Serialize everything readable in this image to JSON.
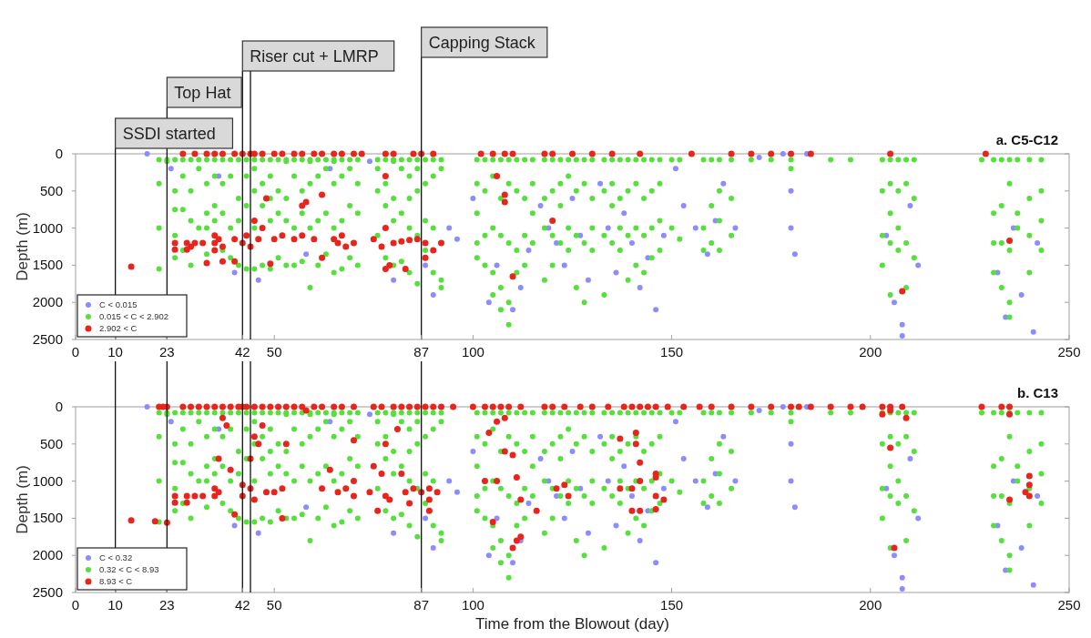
{
  "chart_data": [
    {
      "type": "scatter",
      "title": "a. C5-C12",
      "ylabel": "Depth (m)",
      "xlim": [
        0,
        250
      ],
      "ylim": [
        2500,
        0
      ],
      "xticks": [
        0,
        10,
        23,
        42,
        50,
        87,
        100,
        150,
        200,
        250
      ],
      "yticks": [
        0,
        500,
        1000,
        1500,
        2000,
        2500
      ],
      "legend": "bottom left",
      "marker": "circle",
      "ref_lines": [
        {
          "axis": "x",
          "value": 10,
          "label": "SSDI started"
        },
        {
          "axis": "x",
          "value": 23,
          "label": "Top Hat"
        },
        {
          "axis": "x",
          "value": 42,
          "label": "Riser cut + LMRP"
        },
        {
          "axis": "x",
          "value": 44
        },
        {
          "axis": "x",
          "value": 87,
          "label": "Capping Stack"
        }
      ],
      "series": [
        {
          "name": "C < 0.015",
          "color": "#8c8cff",
          "x": [
            18,
            24,
            36,
            40,
            46,
            58,
            64,
            74,
            80,
            88,
            90,
            94,
            96,
            100,
            104,
            106,
            110,
            112,
            114,
            117,
            119,
            121,
            123,
            125,
            127,
            129,
            132,
            134,
            136,
            138,
            140,
            142,
            144,
            146,
            148,
            151,
            153,
            156,
            159,
            161,
            163,
            166,
            172,
            178,
            180,
            180,
            181,
            184,
            204,
            206,
            208,
            208,
            210,
            212,
            232,
            234,
            236,
            238,
            242,
            241
          ],
          "values": [
            0,
            200,
            300,
            1600,
            1700,
            1350,
            200,
            100,
            1700,
            1500,
            1900,
            1000,
            1150,
            600,
            2000,
            1500,
            2100,
            1800,
            1300,
            700,
            1000,
            1200,
            1500,
            600,
            1100,
            1700,
            400,
            1000,
            1600,
            800,
            1200,
            1800,
            1400,
            2100,
            1100,
            200,
            700,
            1000,
            1350,
            900,
            400,
            1000,
            50,
            0,
            500,
            1000,
            1350,
            0,
            1100,
            2000,
            2300,
            2450,
            700,
            1500,
            1600,
            2200,
            1000,
            1900,
            1200,
            2400
          ]
        },
        {
          "name": "0.015 < C < 2.902",
          "color": "#55e03c",
          "x": [
            21,
            21,
            21,
            21,
            23,
            23,
            25,
            25,
            25,
            25,
            25,
            27,
            27,
            27,
            27,
            29,
            29,
            29,
            29,
            31,
            31,
            31,
            33,
            33,
            33,
            33,
            33,
            35,
            35,
            35,
            35,
            37,
            37,
            37,
            37,
            39,
            39,
            39,
            39,
            41,
            41,
            41,
            41,
            43,
            43,
            43,
            43,
            45,
            45,
            45,
            45,
            45,
            47,
            47,
            47,
            47,
            49,
            49,
            49,
            49,
            49,
            51,
            51,
            51,
            51,
            53,
            53,
            53,
            53,
            53,
            55,
            55,
            55,
            55,
            57,
            57,
            57,
            57,
            59,
            59,
            59,
            59,
            59,
            61,
            61,
            61,
            61,
            63,
            63,
            63,
            63,
            65,
            65,
            65,
            65,
            65,
            67,
            67,
            67,
            67,
            69,
            69,
            69,
            69,
            71,
            71,
            71,
            71,
            76,
            76,
            76,
            76,
            78,
            78,
            78,
            78,
            80,
            80,
            80,
            80,
            80,
            82,
            82,
            82,
            82,
            84,
            84,
            84,
            84,
            84,
            86,
            86,
            86,
            86,
            86,
            88,
            88,
            88,
            88,
            90,
            90,
            90,
            90,
            92,
            92,
            92,
            92,
            101,
            101,
            101,
            101,
            101,
            103,
            103,
            103,
            103,
            105,
            105,
            105,
            105,
            105,
            107,
            107,
            107,
            107,
            107,
            109,
            109,
            109,
            109,
            109,
            111,
            111,
            111,
            111,
            113,
            113,
            113,
            113,
            115,
            115,
            115,
            115,
            118,
            118,
            118,
            118,
            120,
            120,
            120,
            120,
            122,
            122,
            122,
            122,
            124,
            124,
            124,
            124,
            126,
            126,
            126,
            126,
            128,
            128,
            128,
            128,
            130,
            130,
            130,
            130,
            133,
            133,
            133,
            133,
            135,
            135,
            135,
            135,
            137,
            137,
            137,
            137,
            139,
            139,
            139,
            139,
            141,
            141,
            141,
            141,
            143,
            143,
            143,
            143,
            145,
            145,
            145,
            145,
            147,
            147,
            147,
            147,
            150,
            150,
            152,
            152,
            158,
            158,
            158,
            160,
            160,
            160,
            162,
            162,
            162,
            162,
            165,
            165,
            165,
            170,
            175,
            180,
            180,
            190,
            195,
            203,
            203,
            203,
            203,
            205,
            205,
            205,
            205,
            205,
            207,
            207,
            207,
            207,
            209,
            209,
            209,
            209,
            211,
            211,
            211,
            228,
            231,
            231,
            231,
            231,
            233,
            233,
            233,
            233,
            235,
            235,
            235,
            235,
            235,
            237,
            237,
            237,
            240,
            240,
            240,
            240,
            243,
            243,
            243,
            243
          ],
          "values": [
            80,
            400,
            1000,
            1550,
            80,
            100,
            80,
            500,
            750,
            1100,
            1400,
            80,
            300,
            750,
            1300,
            80,
            500,
            900,
            1500,
            80,
            200,
            1000,
            80,
            400,
            800,
            1000,
            1350,
            80,
            300,
            700,
            900,
            80,
            400,
            800,
            1300,
            80,
            300,
            1000,
            1400,
            80,
            600,
            900,
            1500,
            80,
            300,
            700,
            1550,
            80,
            200,
            500,
            1000,
            1550,
            80,
            400,
            700,
            1500,
            80,
            300,
            600,
            900,
            1550,
            80,
            500,
            800,
            1400,
            80,
            100,
            600,
            900,
            1500,
            80,
            300,
            1000,
            1500,
            80,
            500,
            800,
            1450,
            80,
            100,
            400,
            1000,
            1800,
            80,
            300,
            900,
            1500,
            80,
            200,
            800,
            1350,
            80,
            100,
            400,
            1000,
            1600,
            80,
            300,
            900,
            1550,
            80,
            200,
            700,
            1400,
            80,
            400,
            800,
            1500,
            80,
            200,
            500,
            1100,
            80,
            400,
            700,
            1400,
            80,
            100,
            600,
            900,
            1500,
            80,
            200,
            800,
            1450,
            80,
            300,
            600,
            1000,
            1600,
            80,
            200,
            500,
            1100,
            1750,
            80,
            400,
            900,
            1300,
            80,
            300,
            1000,
            1600,
            80,
            200,
            1700,
            1800,
            80,
            400,
            800,
            1200,
            1400,
            80,
            500,
            1100,
            1500,
            80,
            300,
            1000,
            1600,
            1900,
            80,
            600,
            1100,
            1800,
            2100,
            80,
            400,
            1200,
            2000,
            2300,
            80,
            500,
            1300,
            1600,
            80,
            600,
            1100,
            1500,
            80,
            400,
            800,
            1200,
            80,
            600,
            1000,
            1700,
            80,
            500,
            1100,
            1500,
            80,
            400,
            700,
            1200,
            80,
            300,
            1000,
            1300,
            80,
            500,
            1100,
            1800,
            80,
            400,
            1200,
            2000,
            80,
            600,
            1000,
            1300,
            80,
            500,
            1100,
            1900,
            80,
            400,
            700,
            1200,
            80,
            600,
            1000,
            1300,
            80,
            500,
            1100,
            1700,
            80,
            400,
            1000,
            1500,
            80,
            600,
            1100,
            1600,
            80,
            500,
            1000,
            1400,
            80,
            400,
            900,
            1300,
            80,
            1000,
            80,
            1150,
            80,
            1000,
            1300,
            80,
            700,
            1200,
            80,
            500,
            900,
            1300,
            80,
            600,
            1100,
            80,
            80,
            80,
            200,
            80,
            80,
            80,
            500,
            1100,
            1500,
            80,
            400,
            800,
            1200,
            1900,
            80,
            500,
            1000,
            1300,
            80,
            400,
            1200,
            1800,
            80,
            600,
            1400,
            80,
            80,
            800,
            1200,
            1600,
            80,
            700,
            1200,
            1800,
            80,
            400,
            1300,
            2000,
            2200,
            80,
            800,
            1000,
            80,
            600,
            1100,
            1600,
            80,
            500,
            900,
            1300
          ]
        },
        {
          "name": "2.902 < C",
          "color": "#e8251c",
          "x": [
            14,
            27,
            30,
            33,
            35,
            37,
            40,
            42,
            44,
            45,
            47,
            50,
            52,
            55,
            57,
            60,
            62,
            65,
            67,
            70,
            72,
            78,
            80,
            85,
            87,
            90,
            102,
            105,
            108,
            110,
            118,
            120,
            125,
            130,
            135,
            142,
            155,
            165,
            170,
            175,
            180,
            185,
            205,
            229,
            25,
            25,
            28,
            28,
            29,
            30,
            32,
            35,
            35,
            35,
            36,
            37,
            37,
            40,
            42,
            43,
            44,
            46,
            47,
            48,
            50,
            52,
            55,
            57,
            57,
            60,
            62,
            65,
            66,
            67,
            68,
            70,
            75,
            77,
            78,
            80,
            82,
            84,
            86,
            88,
            90,
            92,
            88,
            83,
            78,
            78,
            79,
            110,
            108,
            108,
            106,
            120,
            208,
            235,
            62,
            49,
            33,
            40,
            58,
            45
          ],
          "values": [
            1520,
            0,
            0,
            0,
            0,
            0,
            0,
            0,
            0,
            0,
            0,
            0,
            0,
            0,
            0,
            0,
            0,
            0,
            0,
            0,
            0,
            0,
            0,
            0,
            0,
            0,
            0,
            0,
            0,
            0,
            0,
            0,
            0,
            0,
            0,
            0,
            0,
            0,
            0,
            0,
            0,
            0,
            0,
            0,
            1200,
            1290,
            1200,
            1290,
            1250,
            1200,
            1200,
            1100,
            1200,
            1300,
            1150,
            1250,
            1450,
            1150,
            1200,
            1100,
            1250,
            1150,
            1000,
            600,
            1150,
            1100,
            1150,
            1100,
            700,
            1150,
            550,
            1150,
            1200,
            1100,
            1250,
            1200,
            1150,
            1250,
            1000,
            1200,
            1180,
            1160,
            1150,
            1200,
            1300,
            1200,
            1400,
            1550,
            1550,
            300,
            1500,
            1650,
            550,
            650,
            300,
            900,
            1850,
            1170,
            1400,
            1480,
            1470,
            1450,
            650,
            900
          ]
        }
      ]
    },
    {
      "type": "scatter",
      "title": "b. C13",
      "xlabel": "Time from the Blowout (day)",
      "ylabel": "Depth (m)",
      "xlim": [
        0,
        250
      ],
      "ylim": [
        2500,
        0
      ],
      "xticks": [
        0,
        10,
        23,
        42,
        50,
        87,
        100,
        150,
        200,
        250
      ],
      "yticks": [
        0,
        500,
        1000,
        1500,
        2000,
        2500
      ],
      "legend": "bottom left",
      "marker": "circle",
      "ref_lines": [
        {
          "axis": "x",
          "value": 10
        },
        {
          "axis": "x",
          "value": 23
        },
        {
          "axis": "x",
          "value": 42
        },
        {
          "axis": "x",
          "value": 44
        },
        {
          "axis": "x",
          "value": 87
        }
      ],
      "series": [
        {
          "name": "C < 0.32",
          "color": "#8c8cff",
          "x": [
            18,
            24,
            36,
            40,
            46,
            58,
            64,
            74,
            80,
            88,
            90,
            94,
            96,
            100,
            104,
            106,
            110,
            112,
            114,
            117,
            119,
            121,
            123,
            125,
            127,
            129,
            132,
            134,
            136,
            138,
            140,
            142,
            144,
            146,
            148,
            151,
            153,
            156,
            159,
            161,
            163,
            166,
            172,
            178,
            180,
            180,
            181,
            184,
            204,
            206,
            208,
            208,
            210,
            212,
            232,
            234,
            236,
            238,
            242,
            241
          ],
          "values": [
            0,
            200,
            300,
            1600,
            1700,
            1350,
            200,
            100,
            1700,
            1500,
            1900,
            1000,
            1150,
            600,
            2000,
            1500,
            2100,
            1800,
            1300,
            700,
            1000,
            1200,
            1500,
            600,
            1100,
            1700,
            400,
            1000,
            1600,
            800,
            1200,
            1800,
            1400,
            2100,
            1100,
            200,
            700,
            1000,
            1350,
            900,
            400,
            1000,
            50,
            0,
            500,
            1000,
            1350,
            0,
            1100,
            2000,
            2300,
            2450,
            700,
            1500,
            1600,
            2200,
            1000,
            1900,
            1200,
            2400
          ]
        },
        {
          "name": "0.32 < C < 8.93",
          "color": "#55e03c",
          "x": [
            21,
            21,
            21,
            21,
            23,
            23,
            25,
            25,
            25,
            25,
            25,
            27,
            27,
            27,
            27,
            29,
            29,
            29,
            29,
            31,
            31,
            31,
            33,
            33,
            33,
            33,
            33,
            35,
            35,
            35,
            35,
            37,
            37,
            37,
            37,
            39,
            39,
            39,
            39,
            41,
            41,
            41,
            41,
            43,
            43,
            43,
            43,
            45,
            45,
            45,
            45,
            45,
            47,
            47,
            47,
            47,
            49,
            49,
            49,
            49,
            49,
            51,
            51,
            51,
            51,
            53,
            53,
            53,
            53,
            53,
            55,
            55,
            55,
            55,
            57,
            57,
            57,
            57,
            59,
            59,
            59,
            59,
            59,
            61,
            61,
            61,
            61,
            63,
            63,
            63,
            63,
            65,
            65,
            65,
            65,
            65,
            67,
            67,
            67,
            67,
            69,
            69,
            69,
            69,
            71,
            71,
            71,
            71,
            76,
            76,
            76,
            76,
            78,
            78,
            78,
            78,
            80,
            80,
            80,
            80,
            80,
            82,
            82,
            82,
            82,
            84,
            84,
            84,
            84,
            84,
            86,
            86,
            86,
            86,
            86,
            88,
            88,
            88,
            88,
            90,
            90,
            90,
            90,
            92,
            92,
            92,
            92,
            101,
            101,
            101,
            101,
            101,
            103,
            103,
            103,
            103,
            105,
            105,
            105,
            105,
            105,
            107,
            107,
            107,
            107,
            107,
            109,
            109,
            109,
            109,
            109,
            111,
            111,
            111,
            111,
            113,
            113,
            113,
            113,
            115,
            115,
            115,
            115,
            118,
            118,
            118,
            118,
            120,
            120,
            120,
            120,
            122,
            122,
            122,
            122,
            124,
            124,
            124,
            124,
            126,
            126,
            126,
            126,
            128,
            128,
            128,
            128,
            130,
            130,
            130,
            130,
            133,
            133,
            133,
            133,
            135,
            135,
            135,
            135,
            137,
            137,
            137,
            137,
            139,
            139,
            139,
            139,
            141,
            141,
            141,
            141,
            143,
            143,
            143,
            143,
            145,
            145,
            145,
            145,
            147,
            147,
            147,
            147,
            150,
            150,
            152,
            152,
            158,
            158,
            158,
            160,
            160,
            160,
            162,
            162,
            162,
            162,
            165,
            165,
            165,
            170,
            175,
            180,
            180,
            190,
            195,
            203,
            203,
            203,
            203,
            205,
            205,
            205,
            205,
            205,
            207,
            207,
            207,
            207,
            209,
            209,
            209,
            209,
            211,
            211,
            211,
            228,
            231,
            231,
            231,
            231,
            233,
            233,
            233,
            233,
            235,
            235,
            235,
            235,
            235,
            237,
            237,
            237,
            240,
            240,
            240,
            240,
            243,
            243,
            243,
            243
          ],
          "values": [
            80,
            400,
            1000,
            1550,
            80,
            100,
            80,
            500,
            750,
            1100,
            1400,
            80,
            300,
            750,
            1300,
            80,
            500,
            900,
            1500,
            80,
            200,
            1000,
            80,
            400,
            800,
            1000,
            1350,
            80,
            300,
            700,
            900,
            80,
            400,
            800,
            1300,
            80,
            300,
            1000,
            1400,
            80,
            600,
            900,
            1500,
            80,
            300,
            700,
            1550,
            80,
            200,
            500,
            1000,
            1550,
            80,
            400,
            700,
            1500,
            80,
            300,
            600,
            900,
            1550,
            80,
            500,
            800,
            1400,
            80,
            100,
            600,
            900,
            1500,
            80,
            300,
            1000,
            1500,
            80,
            500,
            800,
            1450,
            80,
            100,
            400,
            1000,
            1800,
            80,
            300,
            900,
            1500,
            80,
            200,
            800,
            1350,
            80,
            100,
            400,
            1000,
            1600,
            80,
            300,
            900,
            1550,
            80,
            200,
            700,
            1400,
            80,
            400,
            800,
            1500,
            80,
            200,
            500,
            1100,
            80,
            400,
            700,
            1400,
            80,
            100,
            600,
            900,
            1500,
            80,
            200,
            800,
            1450,
            80,
            300,
            600,
            1000,
            1600,
            80,
            200,
            500,
            1100,
            1750,
            80,
            400,
            900,
            1300,
            80,
            300,
            1000,
            1600,
            80,
            200,
            1700,
            1800,
            80,
            400,
            800,
            1200,
            1400,
            80,
            500,
            1100,
            1500,
            80,
            300,
            1000,
            1600,
            1900,
            80,
            600,
            1100,
            1800,
            2100,
            80,
            400,
            1200,
            2000,
            2300,
            80,
            500,
            1300,
            1600,
            80,
            600,
            1100,
            1500,
            80,
            400,
            800,
            1200,
            80,
            600,
            1000,
            1700,
            80,
            500,
            1100,
            1500,
            80,
            400,
            700,
            1200,
            80,
            300,
            1000,
            1300,
            80,
            500,
            1100,
            1800,
            80,
            400,
            1200,
            2000,
            80,
            600,
            1000,
            1300,
            80,
            500,
            1100,
            1900,
            80,
            400,
            700,
            1200,
            80,
            600,
            1000,
            1300,
            80,
            500,
            1100,
            1700,
            80,
            400,
            1000,
            1500,
            80,
            600,
            1100,
            1600,
            80,
            500,
            1000,
            1400,
            80,
            400,
            900,
            1300,
            80,
            1000,
            80,
            1150,
            80,
            1000,
            1300,
            80,
            700,
            1200,
            80,
            500,
            900,
            1300,
            80,
            600,
            1100,
            80,
            80,
            80,
            200,
            80,
            80,
            80,
            500,
            1100,
            1500,
            80,
            400,
            800,
            1200,
            1900,
            80,
            500,
            1000,
            1300,
            80,
            400,
            1200,
            1800,
            80,
            600,
            1400,
            80,
            80,
            800,
            1200,
            1600,
            80,
            700,
            1200,
            1800,
            80,
            400,
            1300,
            2000,
            2200,
            80,
            800,
            1000,
            80,
            600,
            1100,
            1600,
            80,
            500,
            900,
            1300
          ]
        },
        {
          "name": "8.93 < C",
          "color": "#e8251c",
          "x": [
            21,
            22,
            23,
            27,
            29,
            31,
            33,
            35,
            37,
            39,
            41,
            42,
            43,
            45,
            47,
            49,
            51,
            53,
            55,
            57,
            60,
            62,
            65,
            67,
            70,
            75,
            77,
            80,
            82,
            84,
            86,
            88,
            90,
            92,
            95,
            100,
            103,
            105,
            107,
            109,
            112,
            118,
            120,
            123,
            127,
            130,
            134,
            138,
            140,
            142,
            144,
            146,
            149,
            153,
            157,
            160,
            165,
            170,
            175,
            180,
            182,
            185,
            190,
            195,
            198,
            203,
            205,
            208,
            228,
            233,
            235,
            14,
            20,
            23,
            25,
            25,
            28,
            28,
            30,
            32,
            35,
            35,
            36,
            37,
            36,
            38,
            39,
            40,
            42,
            42,
            44,
            44,
            45,
            46,
            45,
            48,
            47,
            50,
            52,
            53,
            52,
            58,
            62,
            66,
            68,
            70,
            70,
            70,
            64,
            74,
            75,
            76,
            78,
            78,
            77,
            79,
            81,
            82,
            83,
            85,
            84,
            87,
            89,
            89,
            89,
            91,
            103,
            104,
            105,
            106,
            106,
            108,
            108,
            110,
            111,
            112,
            111,
            110,
            112,
            116,
            121,
            123,
            124,
            137,
            141,
            141,
            142,
            146,
            146,
            137,
            140,
            142,
            146,
            148,
            140,
            142,
            146,
            203,
            205,
            205,
            206,
            209,
            235,
            235,
            239,
            240,
            240,
            240
          ],
          "values": [
            0,
            0,
            0,
            0,
            0,
            0,
            0,
            0,
            0,
            0,
            0,
            0,
            0,
            0,
            0,
            0,
            0,
            0,
            0,
            0,
            0,
            0,
            0,
            0,
            0,
            0,
            0,
            0,
            0,
            0,
            0,
            0,
            0,
            0,
            0,
            0,
            0,
            0,
            0,
            0,
            0,
            0,
            0,
            0,
            0,
            0,
            0,
            0,
            0,
            0,
            0,
            0,
            0,
            0,
            0,
            0,
            0,
            0,
            0,
            0,
            0,
            0,
            0,
            0,
            0,
            0,
            0,
            0,
            0,
            0,
            0,
            1530,
            1540,
            1560,
            1200,
            1290,
            1200,
            1290,
            1200,
            1200,
            1100,
            1200,
            1150,
            150,
            700,
            250,
            850,
            1450,
            1050,
            1200,
            700,
            1100,
            400,
            500,
            1250,
            1150,
            250,
            1150,
            1100,
            500,
            1500,
            50,
            1100,
            1150,
            1100,
            1000,
            1200,
            450,
            850,
            1150,
            800,
            1400,
            1200,
            500,
            900,
            1250,
            300,
            900,
            1150,
            1100,
            1300,
            1150,
            1100,
            1400,
            1250,
            1150,
            1000,
            350,
            1550,
            200,
            1000,
            600,
            150,
            650,
            950,
            1250,
            1800,
            1900,
            1750,
            1400,
            1100,
            1050,
            1200,
            430,
            350,
            500,
            750,
            900,
            950,
            1100,
            1100,
            1000,
            1200,
            1250,
            1400,
            1400,
            1380,
            100,
            50,
            550,
            1900,
            150,
            1250,
            100,
            1150,
            1050,
            930,
            1200
          ]
        }
      ]
    }
  ]
}
